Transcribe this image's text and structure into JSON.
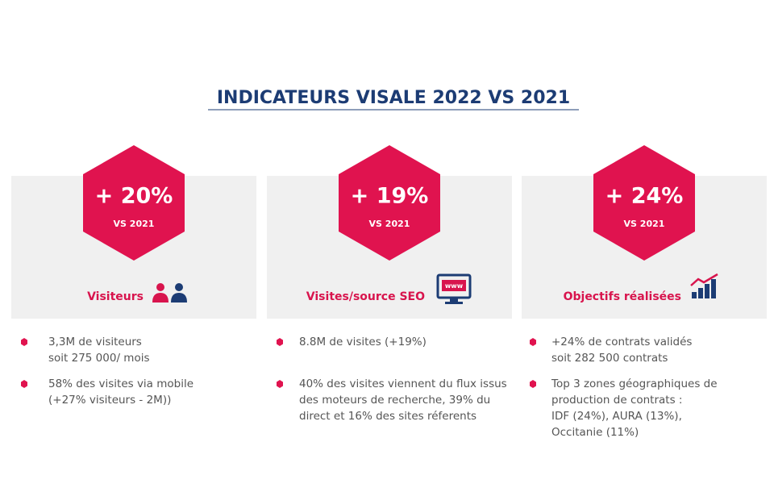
{
  "title": "INDICATEURS VISALE 2022 VS 2021",
  "cards": [
    {
      "value": "+ 20%",
      "sub": "VS 2021",
      "label": "Visiteurs",
      "bullets": [
        [
          "3,3M de visiteurs",
          "soit 275 000/ mois"
        ],
        [
          "58%  des visites via mobile",
          "(+27% visiteurs - 2M))"
        ]
      ]
    },
    {
      "value": "+ 19%",
      "sub": "VS 2021",
      "label": "Visites/source SEO",
      "bullets": [
        [
          "8.8M de visites (+19%)"
        ],
        [
          "40% des visites viennent du flux issus",
          "des moteurs de recherche, 39% du",
          "direct et 16% des sites réferents"
        ]
      ]
    },
    {
      "value": "+ 24%",
      "sub": "VS 2021",
      "label": "Objectifs réalisées",
      "bullets": [
        [
          "+24% de contrats validés",
          "soit 282 500 contrats"
        ],
        [
          "Top 3 zones géographiques de",
          "production de contrats :",
          "IDF (24%), AURA (13%),",
          "Occitanie (11%)"
        ]
      ]
    }
  ]
}
